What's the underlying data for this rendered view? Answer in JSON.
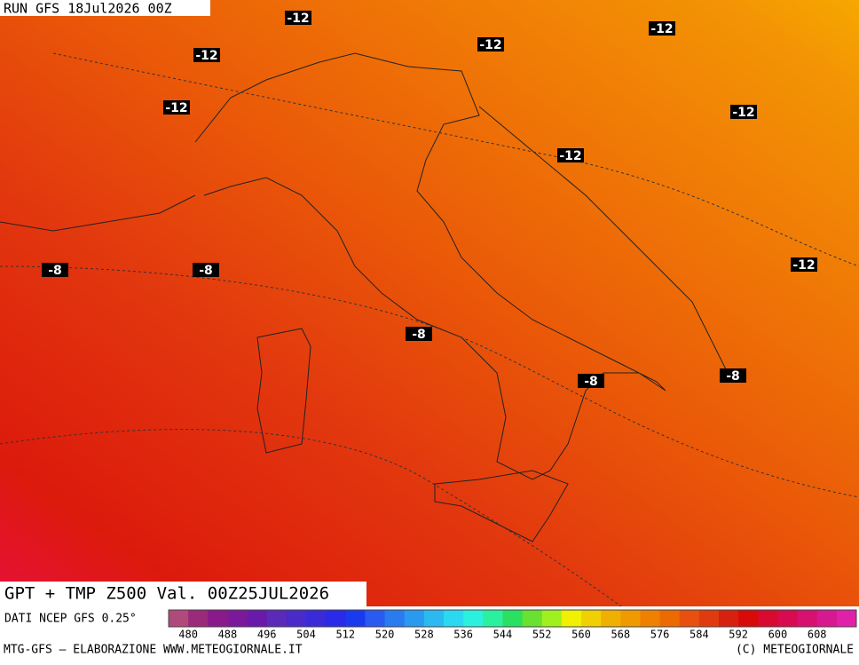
{
  "header": {
    "run": "RUN GFS 18Jul2026 00Z"
  },
  "map": {
    "title": "GPT + TMP Z500 Val. 00Z25JUL2026",
    "contour_labels": [
      -12,
      -12,
      -12,
      -12,
      -12,
      -12,
      -12,
      -12,
      -8,
      -8,
      -8,
      -8,
      -8
    ]
  },
  "colorbar": {
    "source": "DATI NCEP GFS 0.25°",
    "colors": [
      "#b04a7a",
      "#9a2a7a",
      "#8a1a8a",
      "#7a1a9a",
      "#6a1aaa",
      "#5a2ab8",
      "#4a2ac8",
      "#3a2ad8",
      "#2a2ae8",
      "#1a3af0",
      "#2a5af0",
      "#2a7af0",
      "#2a9af0",
      "#2abaf0",
      "#2ad8f0",
      "#2af0e0",
      "#2af0a0",
      "#2ae060",
      "#6ae030",
      "#a0f020",
      "#f0f000",
      "#f0d000",
      "#f0b000",
      "#f09a00",
      "#f08000",
      "#ec6a00",
      "#e85010",
      "#e03a10",
      "#d82010",
      "#d80a0a",
      "#d80a30",
      "#d80a50",
      "#d81070",
      "#d81890",
      "#e020a8"
    ],
    "ticks": [
      480,
      488,
      496,
      504,
      512,
      520,
      528,
      536,
      544,
      552,
      560,
      568,
      576,
      584,
      592,
      600,
      608
    ]
  },
  "footer": {
    "left": "MTG-GFS — ELABORAZIONE WWW.METEOGIORNALE.IT",
    "right": "(C) METEOGIORNALE"
  }
}
